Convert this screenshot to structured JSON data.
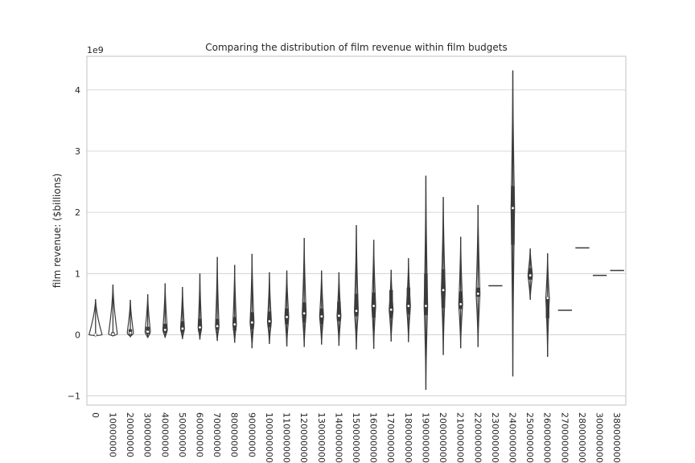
{
  "chart_data": {
    "type": "violin",
    "title": "Comparing the distribution of film revenue within film budgets",
    "ylabel": "film revenue: ($billions)",
    "y_offset_label": "1e9",
    "ylim": [
      -1.15,
      4.55
    ],
    "yticks": [
      -1,
      0,
      1,
      2,
      3,
      4
    ],
    "grid": "horizontal",
    "categories": [
      "0",
      "10000000",
      "20000000",
      "30000000",
      "40000000",
      "50000000",
      "60000000",
      "70000000",
      "80000000",
      "90000000",
      "100000000",
      "110000000",
      "120000000",
      "130000000",
      "140000000",
      "150000000",
      "160000000",
      "170000000",
      "180000000",
      "190000000",
      "200000000",
      "210000000",
      "220000000",
      "230000000",
      "240000000",
      "250000000",
      "260000000",
      "270000000",
      "280000000",
      "300000000",
      "380000000"
    ],
    "violins": [
      {
        "min": -0.02,
        "q1": -0.005,
        "median": 0.0,
        "q3": 0.015,
        "max": 0.58,
        "width": 0.75
      },
      {
        "min": -0.02,
        "q1": 0.0,
        "median": 0.01,
        "q3": 0.04,
        "max": 0.82,
        "width": 0.5
      },
      {
        "min": -0.03,
        "q1": 0.0,
        "median": 0.03,
        "q3": 0.09,
        "max": 0.57,
        "width": 0.35
      },
      {
        "min": -0.05,
        "q1": 0.01,
        "median": 0.05,
        "q3": 0.13,
        "max": 0.66,
        "width": 0.3
      },
      {
        "min": -0.05,
        "q1": 0.03,
        "median": 0.08,
        "q3": 0.18,
        "max": 0.84,
        "width": 0.25
      },
      {
        "min": -0.07,
        "q1": 0.04,
        "median": 0.1,
        "q3": 0.22,
        "max": 0.78,
        "width": 0.22
      },
      {
        "min": -0.08,
        "q1": 0.05,
        "median": 0.12,
        "q3": 0.26,
        "max": 1.0,
        "width": 0.2
      },
      {
        "min": -0.1,
        "q1": 0.08,
        "median": 0.14,
        "q3": 0.26,
        "max": 1.27,
        "width": 0.2
      },
      {
        "min": -0.13,
        "q1": 0.07,
        "median": 0.17,
        "q3": 0.29,
        "max": 1.14,
        "width": 0.2
      },
      {
        "min": -0.22,
        "q1": 0.09,
        "median": 0.2,
        "q3": 0.37,
        "max": 1.32,
        "width": 0.22
      },
      {
        "min": -0.15,
        "q1": 0.12,
        "median": 0.22,
        "q3": 0.38,
        "max": 1.02,
        "width": 0.22
      },
      {
        "min": -0.19,
        "q1": 0.17,
        "median": 0.29,
        "q3": 0.43,
        "max": 1.05,
        "width": 0.22
      },
      {
        "min": -0.2,
        "q1": 0.2,
        "median": 0.35,
        "q3": 0.53,
        "max": 1.58,
        "width": 0.22
      },
      {
        "min": -0.16,
        "q1": 0.17,
        "median": 0.3,
        "q3": 0.43,
        "max": 1.05,
        "width": 0.22
      },
      {
        "min": -0.18,
        "q1": 0.22,
        "median": 0.31,
        "q3": 0.54,
        "max": 1.02,
        "width": 0.22
      },
      {
        "min": -0.24,
        "q1": 0.3,
        "median": 0.39,
        "q3": 0.67,
        "max": 1.79,
        "width": 0.22
      },
      {
        "min": -0.23,
        "q1": 0.28,
        "median": 0.47,
        "q3": 0.69,
        "max": 1.55,
        "width": 0.22
      },
      {
        "min": -0.11,
        "q1": 0.27,
        "median": 0.41,
        "q3": 0.73,
        "max": 1.06,
        "width": 0.22
      },
      {
        "min": -0.12,
        "q1": 0.33,
        "median": 0.47,
        "q3": 0.77,
        "max": 1.25,
        "width": 0.22
      },
      {
        "min": -0.9,
        "q1": 0.32,
        "median": 0.47,
        "q3": 1.0,
        "max": 2.6,
        "width": 0.2
      },
      {
        "min": -0.33,
        "q1": 0.44,
        "median": 0.73,
        "q3": 1.07,
        "max": 2.25,
        "width": 0.22
      },
      {
        "min": -0.22,
        "q1": 0.42,
        "median": 0.5,
        "q3": 0.71,
        "max": 1.6,
        "width": 0.22
      },
      {
        "min": -0.2,
        "q1": 0.62,
        "median": 0.67,
        "q3": 0.77,
        "max": 2.12,
        "width": 0.22
      },
      {
        "single": 0.8,
        "width": 0.8
      },
      {
        "min": -0.68,
        "q1": 1.47,
        "median": 2.07,
        "q3": 2.43,
        "max": 4.32,
        "width": 0.2
      },
      {
        "min": 0.57,
        "q1": 0.9,
        "median": 0.97,
        "q3": 1.09,
        "max": 1.41,
        "width": 0.25
      },
      {
        "min": -0.36,
        "q1": 0.27,
        "median": 0.6,
        "q3": 0.62,
        "max": 1.33,
        "width": 0.2
      },
      {
        "single": 0.4,
        "width": 0.8
      },
      {
        "single": 1.42,
        "width": 0.8
      },
      {
        "single": 0.97,
        "width": 0.8
      },
      {
        "single": 1.05,
        "width": 0.8
      }
    ]
  }
}
